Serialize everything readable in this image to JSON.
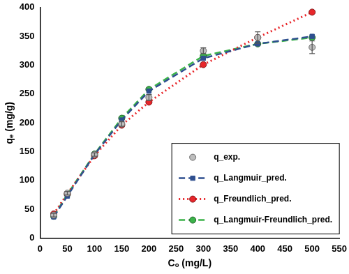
{
  "chart_data": {
    "type": "scatter",
    "x_label": "Cₒ (mg/L)",
    "y_label": "qₑ (mg/g)",
    "x": [
      25,
      50,
      100,
      150,
      200,
      300,
      400,
      500
    ],
    "series": [
      {
        "name": "q_exp.",
        "color": "#bdbdbd",
        "marker": "circle",
        "line_style": "none",
        "values": [
          40,
          78,
          145,
          198,
          244,
          325,
          348,
          331
        ],
        "errors": [
          3,
          3,
          3,
          4,
          5,
          5,
          10,
          11
        ]
      },
      {
        "name": "q_Langmuir_pred.",
        "color": "#2f4f8f",
        "marker": "square",
        "line_style": "dashed",
        "values": [
          37,
          73,
          145,
          205,
          255,
          312,
          337,
          350
        ]
      },
      {
        "name": "q_Freundlich_pred.",
        "color": "#e8262a",
        "marker": "circle",
        "line_style": "dotted",
        "values": [
          42,
          77,
          143,
          196,
          236,
          301,
          348,
          392
        ]
      },
      {
        "name": "q_Langmuir-Freundlich_pred.",
        "color": "#3cb34a",
        "marker": "circle",
        "line_style": "dashed",
        "values": [
          38,
          76,
          146,
          208,
          258,
          316,
          337,
          348
        ]
      }
    ],
    "xlim": [
      0,
      550
    ],
    "xticks": [
      0,
      50,
      100,
      150,
      200,
      250,
      300,
      350,
      400,
      450,
      500,
      550
    ],
    "ylim": [
      0,
      400
    ],
    "yticks": [
      0,
      50,
      100,
      150,
      200,
      250,
      300,
      350,
      400
    ],
    "grid": false,
    "legend": "lower right"
  }
}
